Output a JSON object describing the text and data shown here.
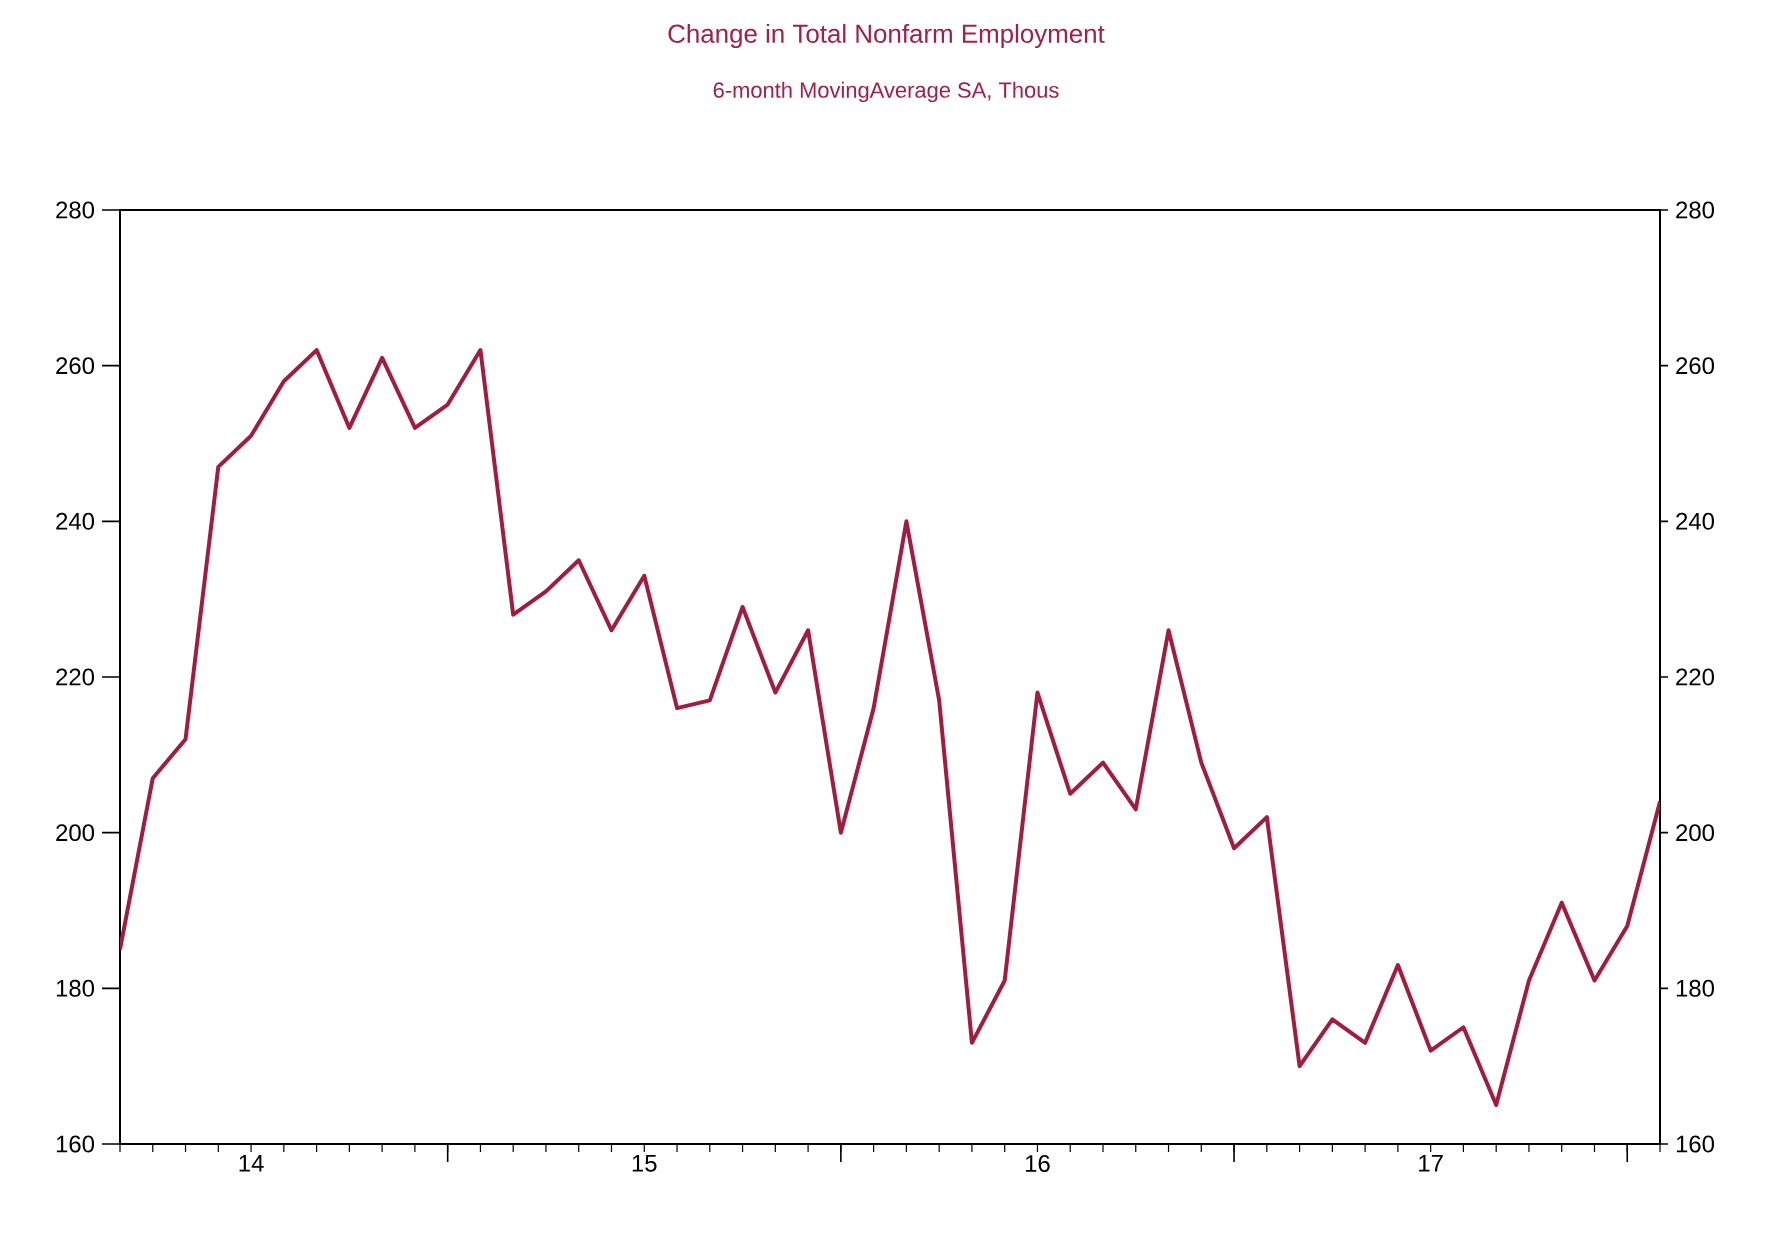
{
  "chart_data": {
    "type": "line",
    "title": "Change in Total Nonfarm Employment",
    "subtitle": "6-month MovingAverage     SA, Thous",
    "x": [
      "2014-03",
      "2014-04",
      "2014-05",
      "2014-06",
      "2014-07",
      "2014-08",
      "2014-09",
      "2014-10",
      "2014-11",
      "2014-12",
      "2015-01",
      "2015-02",
      "2015-03",
      "2015-04",
      "2015-05",
      "2015-06",
      "2015-07",
      "2015-08",
      "2015-09",
      "2015-10",
      "2015-11",
      "2015-12",
      "2016-01",
      "2016-02",
      "2016-03",
      "2016-04",
      "2016-05",
      "2016-06",
      "2016-07",
      "2016-08",
      "2016-09",
      "2016-10",
      "2016-11",
      "2016-12",
      "2017-01",
      "2017-02",
      "2017-03",
      "2017-04",
      "2017-05",
      "2017-06",
      "2017-07",
      "2017-08",
      "2017-09",
      "2017-10",
      "2017-11",
      "2017-12",
      "2018-01",
      "2018-02"
    ],
    "series": [
      {
        "color": "#a31c40",
        "values": [
          185,
          207,
          212,
          247,
          251,
          258,
          262,
          252,
          261,
          252,
          255,
          262,
          228,
          231,
          235,
          226,
          233,
          216,
          217,
          229,
          218,
          226,
          200,
          216,
          240,
          217,
          173,
          181,
          218,
          205,
          209,
          203,
          226,
          209,
          198,
          202,
          170,
          176,
          173,
          183,
          172,
          175,
          165,
          181,
          191,
          181,
          188,
          204
        ]
      }
    ],
    "xlim": [
      "2014-03",
      "2018-02"
    ],
    "xticks": [
      {
        "value": "2014-07",
        "label": "14"
      },
      {
        "value": "2015-01",
        "label": null
      },
      {
        "value": "2015-07",
        "label": "15"
      },
      {
        "value": "2016-01",
        "label": null
      },
      {
        "value": "2016-07",
        "label": "16"
      },
      {
        "value": "2017-01",
        "label": null
      },
      {
        "value": "2017-07",
        "label": "17"
      },
      {
        "value": "2018-01",
        "label": null
      }
    ],
    "ylim": [
      160,
      280
    ],
    "yticks": [
      160,
      180,
      200,
      220,
      240,
      260,
      280
    ],
    "y2lim": [
      160,
      280
    ],
    "y2ticks": [
      160,
      180,
      200,
      220,
      240,
      260,
      280
    ],
    "grid": false,
    "legend": false,
    "marker": "none",
    "line_style": "solid"
  }
}
